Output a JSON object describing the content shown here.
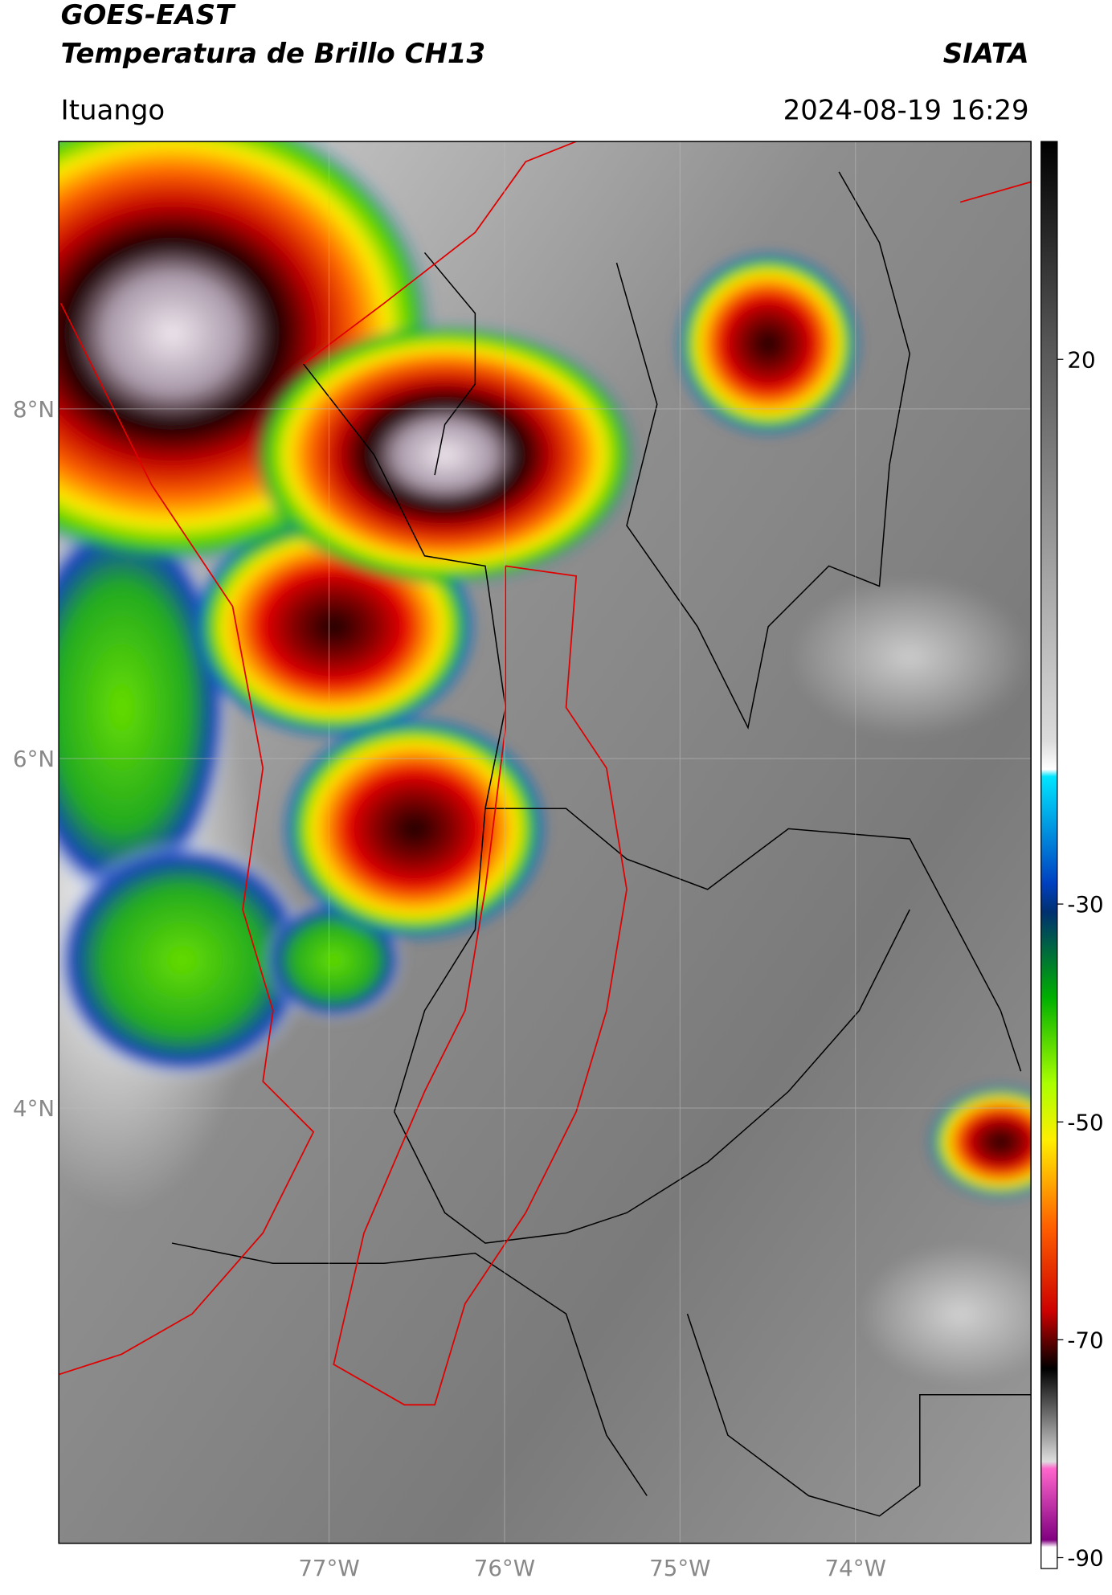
{
  "header": {
    "title": "GOES-EAST",
    "subtitle": "Temperatura de Brillo CH13",
    "source": "SIATA",
    "location": "Ituango",
    "datetime": "2024-08-19 16:29"
  },
  "map": {
    "xlim": [
      -78.54,
      -73.0
    ],
    "ylim": [
      1.51,
      9.53
    ],
    "xticks": [
      {
        "value": -77,
        "label": "77°W"
      },
      {
        "value": -76,
        "label": "76°W"
      },
      {
        "value": -75,
        "label": "75°W"
      },
      {
        "value": -74,
        "label": "74°W"
      }
    ],
    "yticks": [
      {
        "value": 8,
        "label": "8°N"
      },
      {
        "value": 6,
        "label": "6°N"
      },
      {
        "value": 4,
        "label": "4°N"
      }
    ]
  },
  "colorbar": {
    "clim": [
      -91,
      40
    ],
    "ticks": [
      20,
      -30,
      -50,
      -70,
      -90
    ]
  }
}
